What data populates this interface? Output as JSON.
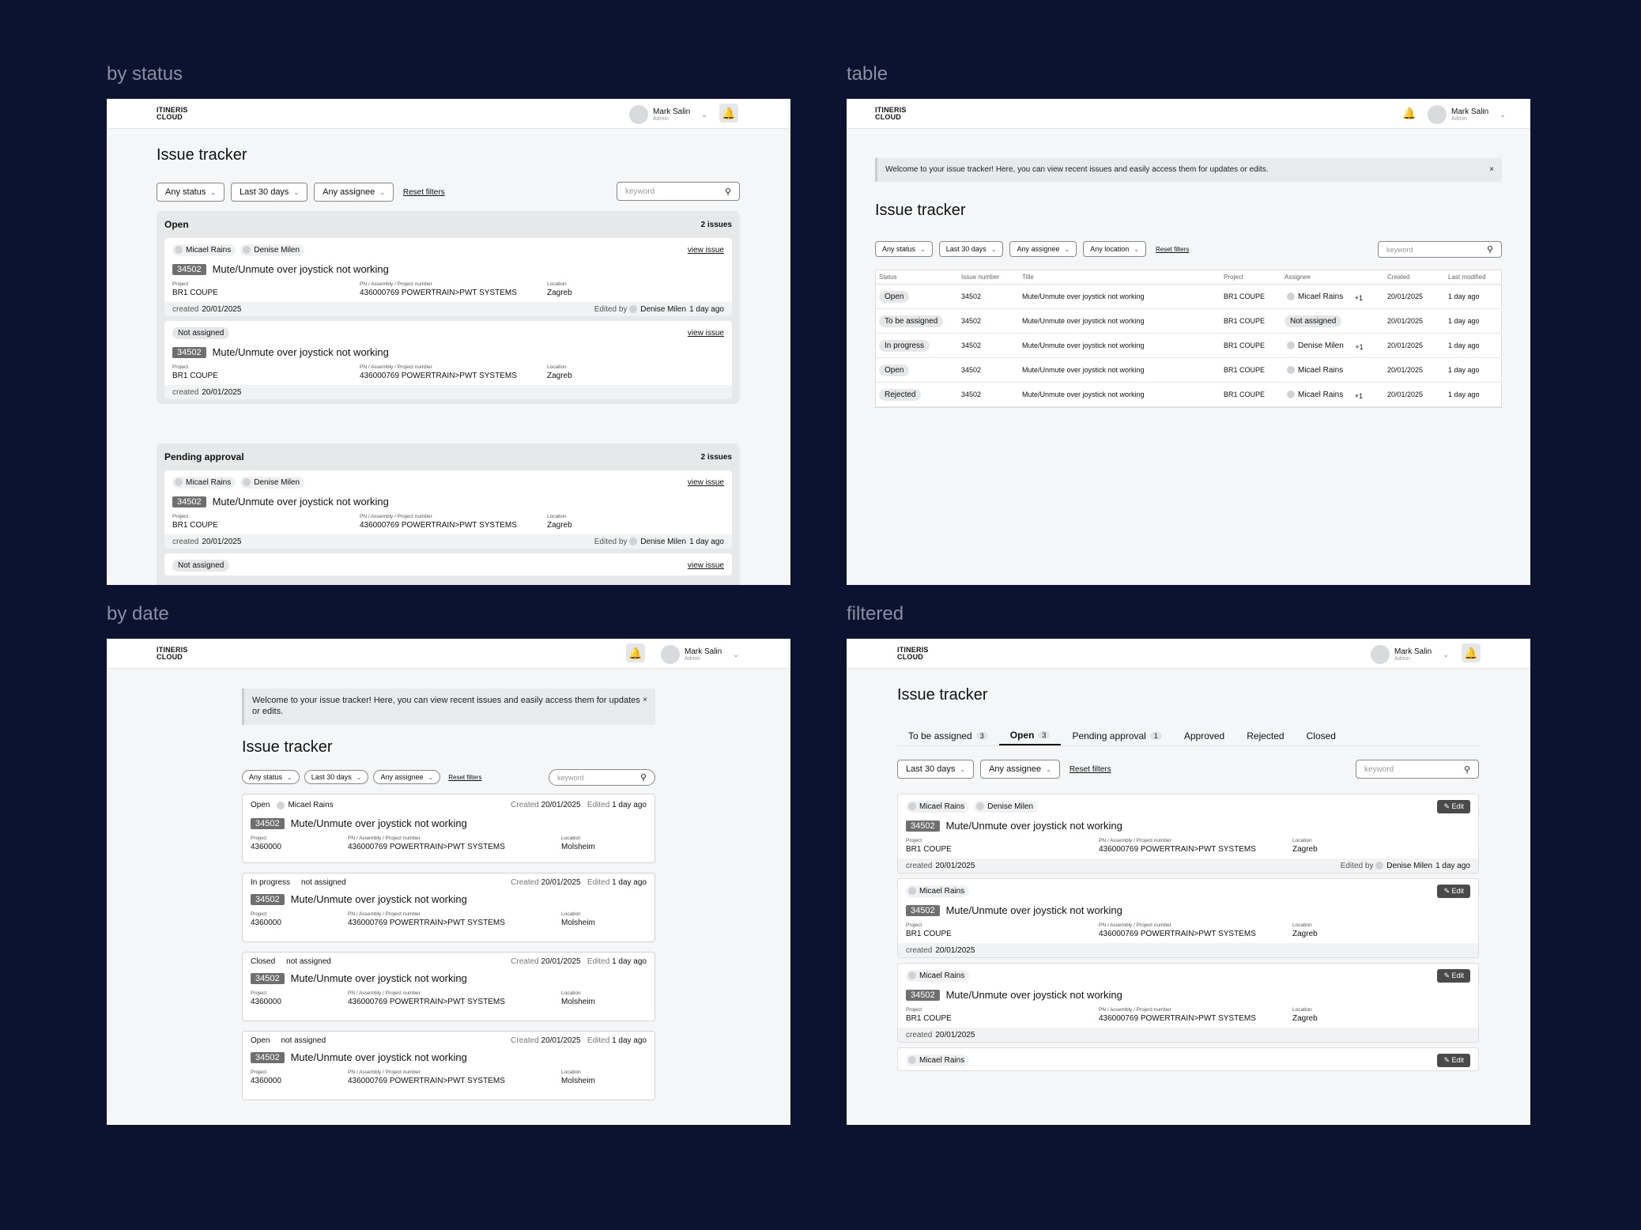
{
  "labels": {
    "by_status": "by status",
    "table": "table",
    "by_date": "by date",
    "filtered": "filtered"
  },
  "app": {
    "logo_line1": "ITINERIS",
    "logo_line2": "CLOUD",
    "user_name": "Mark Salin",
    "user_role": "Admin",
    "title": "Issue tracker",
    "search_placeholder": "keyword",
    "banner": "Welcome to your issue tracker! Here, you can view recent issues and easily access them for updates or edits.",
    "close": "×"
  },
  "filters": {
    "status": "Any status",
    "date": "Last 30 days",
    "assignee": "Any assignee",
    "location": "Any location",
    "reset": "Reset filters"
  },
  "common": {
    "issue_num": "34502",
    "issue_title": "Mute/Unmute over joystick not working",
    "k_project": "Project",
    "k_pn": "PN / Assembly / Project number",
    "k_location": "Location",
    "project": "BR1 COUPE",
    "pn": "436000769 POWERTRAIN>PWT SYSTEMS",
    "location": "Zagreb",
    "project2": "4360000",
    "location2": "Molsheim",
    "created_label": "created",
    "created_label2": "Created",
    "date": "20/01/2025",
    "edited_by": "Edited by",
    "edited": "Edited",
    "ago": "1 day ago",
    "view": "view issue",
    "edit": "Edit",
    "p1": "Micael Rains",
    "p2": "Denise Milen",
    "not_assigned": "Not assigned",
    "not_assigned_lc": "not assigned"
  },
  "groups": {
    "open": "Open",
    "pending": "Pending approval",
    "count": "2 issues"
  },
  "table": {
    "headers": [
      "Status",
      "Issue number",
      "Title",
      "Project",
      "Assignee",
      "Created",
      "Last modified"
    ],
    "rows": [
      {
        "status": "Open",
        "assignee": "Micael Rains",
        "extra": "+1"
      },
      {
        "status": "To be assigned",
        "assignee": "Not assigned",
        "extra": ""
      },
      {
        "status": "In progress",
        "assignee": "Denise Milen",
        "extra": "+1"
      },
      {
        "status": "Open",
        "assignee": "Micael Rains",
        "extra": ""
      },
      {
        "status": "Rejected",
        "assignee": "Micael Rains",
        "extra": "+1"
      }
    ]
  },
  "dates": {
    "statuses": [
      "Open",
      "In progress",
      "Closed",
      "Open"
    ],
    "assignees": [
      "Micael Rains",
      "not assigned",
      "not assigned",
      "not assigned"
    ]
  },
  "tabs": [
    {
      "label": "To be assigned",
      "count": "3"
    },
    {
      "label": "Open",
      "count": "3"
    },
    {
      "label": "Pending approval",
      "count": "1"
    },
    {
      "label": "Approved",
      "count": ""
    },
    {
      "label": "Rejected",
      "count": ""
    },
    {
      "label": "Closed",
      "count": ""
    }
  ]
}
